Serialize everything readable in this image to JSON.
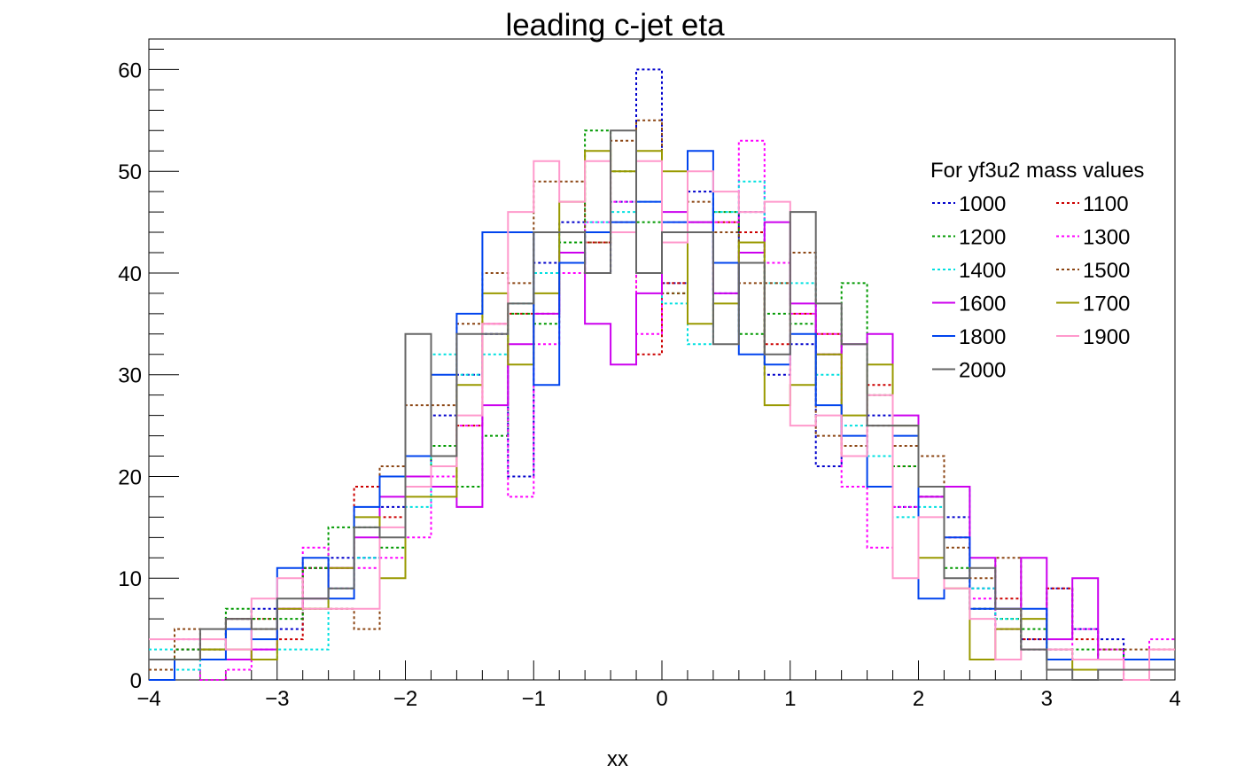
{
  "chart_data": {
    "type": "line",
    "title": "leading c-jet eta",
    "xlabel": "xx",
    "ylabel": "",
    "xlim": [
      -4,
      4
    ],
    "ylim": [
      0,
      63
    ],
    "x_ticks": [
      -4,
      -3,
      -2,
      -1,
      0,
      1,
      2,
      3,
      4
    ],
    "x_tick_labels": [
      "−4",
      "−3",
      "−2",
      "−1",
      "0",
      "1",
      "2",
      "3",
      "4"
    ],
    "y_ticks": [
      0,
      10,
      20,
      30,
      40,
      50,
      60
    ],
    "y_tick_labels": [
      "0",
      "10",
      "20",
      "30",
      "40",
      "50",
      "60"
    ],
    "bin_edges": [
      -4.0,
      -3.8,
      -3.6,
      -3.4,
      -3.2,
      -3.0,
      -2.8,
      -2.6,
      -2.4,
      -2.2,
      -2.0,
      -1.8,
      -1.6,
      -1.4,
      -1.2,
      -1.0,
      -0.8,
      -0.6,
      -0.4,
      -0.2,
      0.0,
      0.2,
      0.4,
      0.6,
      0.8,
      1.0,
      1.2,
      1.4,
      1.6,
      1.8,
      2.0,
      2.2,
      2.4,
      2.6,
      2.8,
      3.0,
      3.2,
      3.4,
      3.6,
      3.8,
      4.0
    ],
    "legend": {
      "title": "For yf3u2 mass values",
      "position": "top-right",
      "columns": 2
    },
    "grid": false,
    "series": [
      {
        "name": "1000",
        "color": "#0000cc",
        "style": "dotted",
        "values": [
          2,
          3,
          3,
          6,
          7,
          5,
          11,
          12,
          12,
          17,
          19,
          26,
          30,
          34,
          20,
          41,
          45,
          40,
          47,
          60,
          39,
          48,
          38,
          46,
          30,
          33,
          21,
          22,
          26,
          17,
          18,
          16,
          9,
          5,
          4,
          9,
          5,
          4,
          2,
          2
        ]
      },
      {
        "name": "1100",
        "color": "#cc0000",
        "style": "dotted",
        "values": [
          2,
          3,
          3,
          6,
          6,
          4,
          11,
          11,
          19,
          16,
          19,
          22,
          25,
          35,
          36,
          36,
          41,
          43,
          45,
          32,
          39,
          44,
          45,
          44,
          33,
          36,
          34,
          22,
          29,
          21,
          18,
          14,
          7,
          8,
          4,
          9,
          4,
          2,
          1,
          3
        ]
      },
      {
        "name": "1200",
        "color": "#009900",
        "style": "dotted",
        "values": [
          2,
          3,
          3,
          7,
          6,
          6,
          11,
          15,
          15,
          13,
          20,
          23,
          19,
          24,
          36,
          35,
          43,
          54,
          50,
          45,
          38,
          45,
          46,
          34,
          36,
          35,
          32,
          39,
          28,
          21,
          18,
          11,
          7,
          6,
          5,
          3,
          3,
          3,
          2,
          2
        ]
      },
      {
        "name": "1300",
        "color": "#ff00ff",
        "style": "dotted",
        "values": [
          1,
          4,
          0,
          1,
          3,
          7,
          13,
          9,
          11,
          12,
          14,
          20,
          25,
          35,
          18,
          33,
          40,
          45,
          47,
          34,
          45,
          45,
          45,
          53,
          41,
          36,
          34,
          19,
          13,
          17,
          18,
          14,
          8,
          5,
          3,
          3,
          5,
          3,
          0,
          4
        ]
      },
      {
        "name": "1400",
        "color": "#00e0e0",
        "style": "dotted",
        "values": [
          3,
          1,
          2,
          2,
          2,
          3,
          3,
          9,
          12,
          20,
          17,
          32,
          30,
          32,
          37,
          40,
          44,
          45,
          46,
          47,
          37,
          33,
          46,
          49,
          39,
          39,
          30,
          25,
          22,
          16,
          17,
          19,
          9,
          6,
          3,
          3,
          2,
          2,
          2,
          2
        ]
      },
      {
        "name": "1500",
        "color": "#8b4513",
        "style": "dotted",
        "values": [
          1,
          5,
          3,
          6,
          5,
          7,
          7,
          7,
          5,
          21,
          27,
          27,
          35,
          40,
          39,
          49,
          49,
          43,
          53,
          55,
          38,
          47,
          44,
          39,
          39,
          42,
          24,
          23,
          25,
          23,
          22,
          13,
          10,
          12,
          3,
          3,
          2,
          3,
          3,
          1
        ]
      },
      {
        "name": "1600",
        "color": "#cc00ee",
        "style": "solid",
        "values": [
          2,
          2,
          2,
          2,
          3,
          7,
          8,
          11,
          14,
          18,
          20,
          19,
          17,
          27,
          33,
          36,
          42,
          35,
          31,
          38,
          46,
          45,
          38,
          42,
          45,
          37,
          32,
          33,
          34,
          26,
          18,
          19,
          12,
          7,
          12,
          4,
          10,
          2,
          1,
          1
        ]
      },
      {
        "name": "1700",
        "color": "#999900",
        "style": "solid",
        "values": [
          2,
          2,
          3,
          3,
          2,
          7,
          7,
          11,
          16,
          10,
          18,
          18,
          29,
          38,
          31,
          38,
          47,
          52,
          50,
          52,
          50,
          35,
          37,
          43,
          27,
          29,
          32,
          26,
          31,
          25,
          12,
          9,
          2,
          5,
          6,
          2,
          1,
          1,
          1,
          1
        ]
      },
      {
        "name": "1800",
        "color": "#0044ee",
        "style": "solid",
        "values": [
          0,
          2,
          2,
          5,
          4,
          11,
          12,
          8,
          17,
          20,
          22,
          30,
          36,
          44,
          44,
          29,
          41,
          44,
          45,
          47,
          45,
          52,
          41,
          32,
          31,
          34,
          27,
          24,
          19,
          24,
          8,
          14,
          7,
          7,
          7,
          2,
          2,
          2,
          2,
          2
        ]
      },
      {
        "name": "1900",
        "color": "#ff99cc",
        "style": "solid",
        "values": [
          4,
          4,
          4,
          3,
          8,
          10,
          7,
          7,
          7,
          15,
          19,
          21,
          26,
          35,
          46,
          51,
          47,
          51,
          44,
          51,
          43,
          50,
          48,
          46,
          47,
          25,
          26,
          22,
          28,
          10,
          16,
          9,
          6,
          2,
          3,
          3,
          2,
          2,
          0,
          3
        ]
      },
      {
        "name": "2000",
        "color": "#666666",
        "style": "solid",
        "values": [
          2,
          2,
          5,
          6,
          5,
          8,
          8,
          9,
          15,
          14,
          34,
          22,
          34,
          34,
          37,
          44,
          44,
          40,
          54,
          40,
          44,
          44,
          33,
          41,
          32,
          46,
          37,
          33,
          25,
          25,
          19,
          10,
          11,
          7,
          3,
          1,
          0,
          1,
          1,
          1
        ]
      }
    ]
  }
}
